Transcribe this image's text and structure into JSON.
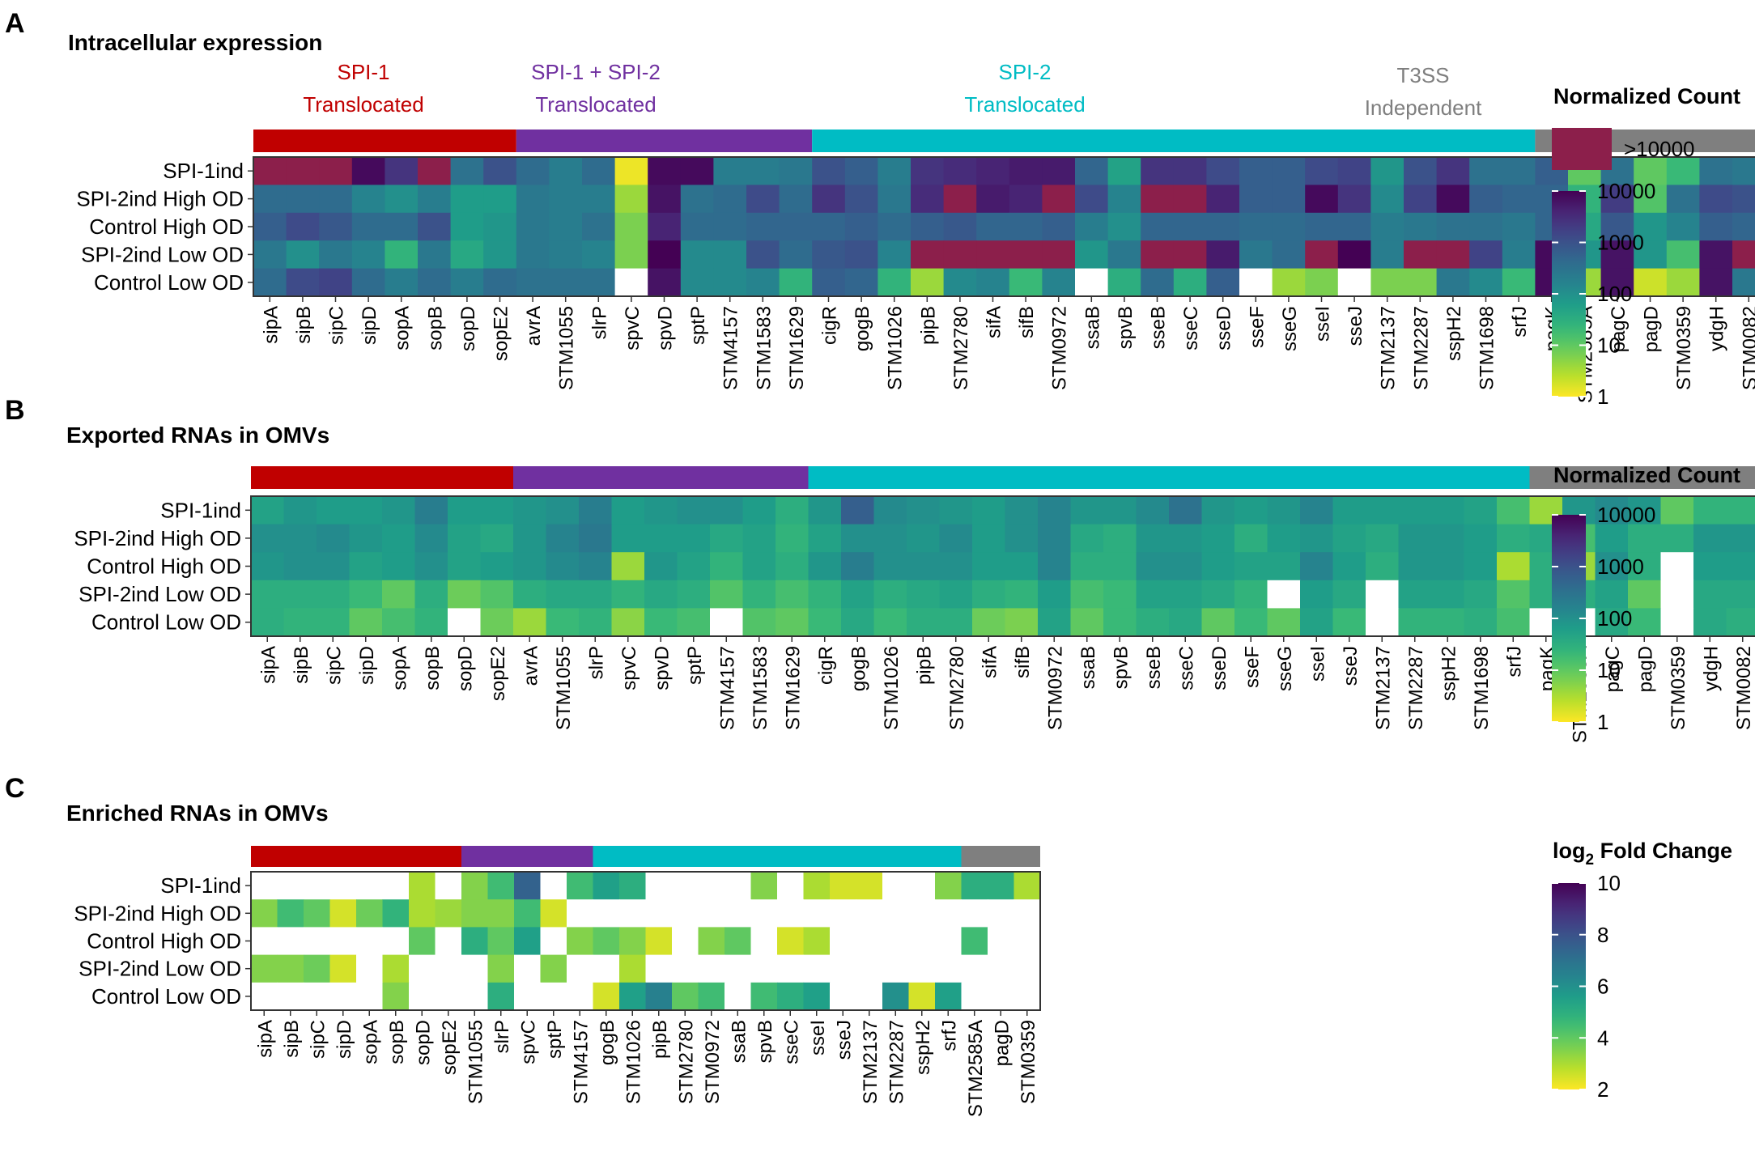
{
  "figure": {
    "legend_titles": {
      "counts": "Normalized Count",
      "fold_prefix": "log",
      "fold_sub": "2",
      "fold_suffix": " Fold Change"
    },
    "saturation_label": ">10000",
    "group_labels": [
      {
        "line1": "SPI-1",
        "line2": "Translocated",
        "color": "#c00000"
      },
      {
        "line1": "SPI-1 + SPI-2",
        "line2": "Translocated",
        "color": "#7030a0"
      },
      {
        "line1": "SPI-2",
        "line2": "Translocated",
        "color": "#00bcc4"
      },
      {
        "line1": "T3SS",
        "line2": "Independent",
        "color": "#7f7f7f"
      }
    ],
    "count_ticks": [
      "10000",
      "1000",
      "100",
      "10",
      "1"
    ],
    "fold_ticks": [
      "10",
      "8",
      "6",
      "4",
      "2"
    ]
  },
  "chart_data": [
    {
      "panel": "A",
      "title": "Intracellular expression",
      "type": "heatmap",
      "scale": "log10 normalized count",
      "range": [
        1,
        10000
      ],
      "saturated_above": 10000,
      "rows": [
        "SPI-1ind",
        "SPI-2ind High OD",
        "Control High OD",
        "SPI-2ind Low OD",
        "Control Low OD"
      ],
      "columns": [
        "sipA",
        "sipB",
        "sipC",
        "sipD",
        "sopA",
        "sopB",
        "sopD",
        "sopE2",
        "avrA",
        "STM1055",
        "slrP",
        "spvC",
        "spvD",
        "sptP",
        "STM4157",
        "STM1583",
        "STM1629",
        "cigR",
        "gogB",
        "STM1026",
        "pipB",
        "STM2780",
        "sifA",
        "sifB",
        "STM0972",
        "ssaB",
        "spvB",
        "sseB",
        "sseC",
        "sseD",
        "sseF",
        "sseG",
        "sseI",
        "sseJ",
        "STM2137",
        "STM2287",
        "sspH2",
        "STM1698",
        "srfJ",
        "pagK",
        "STM2585A",
        "pagC",
        "pagD",
        "STM0359",
        "ydgH",
        "STM0082"
      ],
      "groups": [
        {
          "name": "SPI-1 Translocated",
          "start": 0,
          "end": 7
        },
        {
          "name": "SPI-1 + SPI-2 Translocated",
          "start": 8,
          "end": 16
        },
        {
          "name": "SPI-2 Translocated",
          "start": 17,
          "end": 38
        },
        {
          "name": "T3SS Independent",
          "start": 39,
          "end": 45
        }
      ],
      "values_log10": [
        [
          4.3,
          4.3,
          4.3,
          3.9,
          3.4,
          4.3,
          2.5,
          3.0,
          2.6,
          2.3,
          2.6,
          0.1,
          3.9,
          3.9,
          2.3,
          2.3,
          2.4,
          3.0,
          2.8,
          2.3,
          3.4,
          3.5,
          3.6,
          3.7,
          3.7,
          2.7,
          1.7,
          3.4,
          3.4,
          3.1,
          2.8,
          2.8,
          3.1,
          3.2,
          1.9,
          3.0,
          3.4,
          2.5,
          2.5,
          2.8,
          1.0,
          2.5,
          1.0,
          1.3,
          2.5,
          2.4
        ],
        [
          2.6,
          2.6,
          2.6,
          2.2,
          2.0,
          2.3,
          1.8,
          1.8,
          2.4,
          2.3,
          2.3,
          0.6,
          3.8,
          2.5,
          2.6,
          3.1,
          2.6,
          3.4,
          3.0,
          2.4,
          3.5,
          4.3,
          3.7,
          3.6,
          4.3,
          3.1,
          2.2,
          4.3,
          4.3,
          3.6,
          2.8,
          2.8,
          3.9,
          3.4,
          2.1,
          3.2,
          3.9,
          2.8,
          2.7,
          2.7,
          1.4,
          3.3,
          1.1,
          2.5,
          3.1,
          3.0
        ],
        [
          2.8,
          3.1,
          2.9,
          2.6,
          2.6,
          3.0,
          1.8,
          1.9,
          2.4,
          2.3,
          2.5,
          0.8,
          3.6,
          2.6,
          2.6,
          2.7,
          2.7,
          2.7,
          2.8,
          2.6,
          2.8,
          2.9,
          2.7,
          2.7,
          2.8,
          2.3,
          2.0,
          2.7,
          2.7,
          2.7,
          2.6,
          2.6,
          2.7,
          2.7,
          2.3,
          2.4,
          2.5,
          2.5,
          2.4,
          2.7,
          1.6,
          2.9,
          1.9,
          2.2,
          2.8,
          2.7
        ],
        [
          2.4,
          2.0,
          2.4,
          2.2,
          1.4,
          2.4,
          1.6,
          1.9,
          2.4,
          2.3,
          2.2,
          0.8,
          4.0,
          2.1,
          2.1,
          3.0,
          2.6,
          2.9,
          3.0,
          2.2,
          4.3,
          4.3,
          4.3,
          4.3,
          4.3,
          1.9,
          2.4,
          4.3,
          4.3,
          3.7,
          2.4,
          2.6,
          4.3,
          4.0,
          2.3,
          4.3,
          4.3,
          3.2,
          2.3,
          3.9,
          1.9,
          3.8,
          1.9,
          1.2,
          3.8,
          4.3
        ],
        [
          2.6,
          3.1,
          3.2,
          2.6,
          2.3,
          2.6,
          2.3,
          2.6,
          2.5,
          2.5,
          2.5,
          null,
          3.8,
          2.1,
          2.1,
          2.2,
          1.4,
          2.8,
          2.7,
          1.4,
          0.6,
          2.1,
          2.2,
          1.3,
          2.2,
          null,
          1.5,
          2.6,
          1.5,
          2.8,
          null,
          0.6,
          0.8,
          null,
          0.8,
          0.8,
          2.4,
          2.1,
          1.3,
          3.9,
          0.6,
          3.8,
          0.3,
          0.6,
          3.8,
          2.4
        ]
      ]
    },
    {
      "panel": "B",
      "title": "Exported RNAs in OMVs",
      "type": "heatmap",
      "scale": "log10 normalized count",
      "range": [
        1,
        10000
      ],
      "rows": [
        "SPI-1ind",
        "SPI-2ind High OD",
        "Control High OD",
        "SPI-2ind Low OD",
        "Control Low OD"
      ],
      "columns": [
        "sipA",
        "sipB",
        "sipC",
        "sipD",
        "sopA",
        "sopB",
        "sopD",
        "sopE2",
        "avrA",
        "STM1055",
        "slrP",
        "spvC",
        "spvD",
        "sptP",
        "STM4157",
        "STM1583",
        "STM1629",
        "cigR",
        "gogB",
        "STM1026",
        "pipB",
        "STM2780",
        "sifA",
        "sifB",
        "STM0972",
        "ssaB",
        "spvB",
        "sseB",
        "sseC",
        "sseD",
        "sseF",
        "sseG",
        "sseI",
        "sseJ",
        "STM2137",
        "STM2287",
        "sspH2",
        "STM1698",
        "srfJ",
        "pagK",
        "STM2585A",
        "pagC",
        "pagD",
        "STM0359",
        "ydgH",
        "STM0082"
      ],
      "groups": [
        {
          "name": "SPI-1 Translocated",
          "start": 0,
          "end": 7
        },
        {
          "name": "SPI-1 + SPI-2 Translocated",
          "start": 8,
          "end": 16
        },
        {
          "name": "SPI-2 Translocated",
          "start": 17,
          "end": 38
        },
        {
          "name": "T3SS Independent",
          "start": 39,
          "end": 45
        }
      ],
      "values_log10": [
        [
          1.7,
          1.9,
          1.8,
          1.8,
          1.9,
          2.3,
          1.8,
          1.8,
          1.9,
          2.0,
          2.3,
          1.8,
          1.9,
          2.0,
          2.0,
          1.8,
          1.5,
          1.9,
          2.8,
          2.1,
          2.0,
          1.9,
          1.8,
          2.0,
          2.2,
          1.9,
          1.9,
          2.1,
          2.5,
          1.9,
          1.8,
          1.9,
          2.2,
          1.8,
          1.8,
          1.8,
          1.8,
          1.7,
          1.2,
          0.6,
          1.9,
          2.1,
          1.9,
          1.0,
          1.4,
          1.4
        ],
        [
          2.0,
          2.0,
          2.1,
          1.9,
          1.8,
          2.1,
          1.7,
          1.6,
          1.9,
          2.2,
          2.4,
          1.8,
          1.8,
          1.8,
          1.6,
          1.7,
          1.4,
          1.7,
          2.0,
          2.0,
          1.9,
          2.1,
          1.8,
          2.0,
          2.2,
          1.6,
          1.5,
          1.9,
          1.9,
          1.8,
          1.5,
          1.8,
          1.9,
          1.7,
          1.6,
          1.9,
          1.9,
          1.8,
          1.5,
          1.6,
          1.2,
          1.8,
          1.5,
          1.5,
          1.9,
          1.9
        ],
        [
          1.9,
          2.0,
          2.0,
          1.7,
          1.8,
          2.0,
          1.7,
          1.8,
          1.9,
          2.1,
          2.2,
          0.6,
          1.9,
          1.7,
          1.4,
          1.7,
          1.5,
          1.9,
          2.3,
          2.0,
          2.0,
          2.0,
          1.8,
          1.8,
          2.2,
          1.5,
          1.5,
          2.0,
          2.0,
          1.8,
          1.7,
          1.7,
          2.2,
          1.8,
          1.5,
          1.9,
          1.9,
          1.8,
          0.5,
          1.5,
          0.6,
          2.0,
          1.5,
          null,
          1.8,
          1.8
        ],
        [
          1.5,
          1.5,
          1.5,
          1.3,
          1.0,
          1.5,
          0.9,
          1.1,
          1.5,
          1.6,
          1.6,
          1.4,
          1.6,
          1.5,
          1.1,
          1.4,
          1.2,
          1.4,
          1.7,
          1.5,
          1.6,
          1.7,
          1.5,
          1.4,
          1.8,
          1.2,
          1.3,
          1.7,
          1.7,
          1.6,
          1.4,
          null,
          1.8,
          1.6,
          null,
          1.7,
          1.7,
          1.6,
          1.1,
          1.5,
          1.5,
          1.7,
          1.0,
          null,
          1.6,
          1.6
        ],
        [
          1.5,
          1.4,
          1.4,
          1.0,
          1.2,
          1.4,
          null,
          0.9,
          0.6,
          1.3,
          1.4,
          0.7,
          1.3,
          1.2,
          null,
          1.1,
          1.0,
          1.3,
          1.6,
          1.3,
          1.5,
          1.5,
          0.9,
          0.8,
          1.7,
          1.0,
          1.3,
          1.5,
          1.6,
          1.0,
          1.3,
          1.0,
          1.7,
          1.3,
          null,
          1.4,
          1.4,
          1.5,
          1.2,
          null,
          null,
          1.6,
          1.3,
          null,
          1.6,
          1.5
        ]
      ]
    },
    {
      "panel": "C",
      "title": "Enriched RNAs in OMVs",
      "type": "heatmap",
      "scale": "log2 fold change",
      "range": [
        2,
        10
      ],
      "rows": [
        "SPI-1ind",
        "SPI-2ind High OD",
        "Control High OD",
        "SPI-2ind Low OD",
        "Control Low OD"
      ],
      "columns": [
        "sipA",
        "sipB",
        "sipC",
        "sipD",
        "sopA",
        "sopB",
        "sopD",
        "sopE2",
        "STM1055",
        "slrP",
        "spvC",
        "sptP",
        "STM4157",
        "gogB",
        "STM1026",
        "pipB",
        "STM2780",
        "STM0972",
        "ssaB",
        "spvB",
        "sseC",
        "sseI",
        "sseJ",
        "STM2137",
        "STM2287",
        "sspH2",
        "srfJ",
        "STM2585A",
        "pagD",
        "STM0359"
      ],
      "groups": [
        {
          "name": "SPI-1 Translocated",
          "start": 0,
          "end": 7
        },
        {
          "name": "SPI-1 + SPI-2 Translocated",
          "start": 8,
          "end": 12
        },
        {
          "name": "SPI-2 Translocated",
          "start": 13,
          "end": 26
        },
        {
          "name": "T3SS Independent",
          "start": 27,
          "end": 29
        }
      ],
      "values": [
        [
          null,
          null,
          null,
          null,
          null,
          null,
          3.0,
          null,
          3.5,
          4.5,
          7.5,
          null,
          4.5,
          5.5,
          5.0,
          null,
          null,
          null,
          null,
          3.5,
          null,
          3.0,
          2.5,
          2.5,
          null,
          null,
          3.5,
          5.0,
          5.0,
          3.0
        ],
        [
          3.5,
          4.5,
          4.0,
          2.5,
          3.8,
          4.8,
          3.0,
          3.2,
          3.5,
          3.5,
          4.5,
          2.5,
          null,
          null,
          null,
          null,
          null,
          null,
          null,
          null,
          null,
          null,
          null,
          null,
          null,
          null,
          null,
          null,
          null,
          null
        ],
        [
          null,
          null,
          null,
          null,
          null,
          null,
          4.0,
          null,
          5.0,
          4.0,
          5.5,
          null,
          3.5,
          4.0,
          3.5,
          2.5,
          null,
          3.5,
          4.0,
          null,
          2.5,
          3.0,
          null,
          null,
          null,
          null,
          null,
          4.5,
          null,
          null
        ],
        [
          3.5,
          3.5,
          3.8,
          2.5,
          null,
          3.0,
          null,
          null,
          null,
          3.5,
          null,
          3.5,
          null,
          null,
          3.0,
          null,
          null,
          null,
          null,
          null,
          null,
          null,
          null,
          null,
          null,
          null,
          null,
          null,
          null,
          null
        ],
        [
          null,
          null,
          null,
          null,
          null,
          3.5,
          null,
          null,
          null,
          5.0,
          null,
          null,
          null,
          2.5,
          5.5,
          6.5,
          4.0,
          4.5,
          null,
          4.5,
          5.0,
          5.5,
          null,
          null,
          6.0,
          2.5,
          5.5,
          null,
          null,
          null
        ]
      ]
    }
  ]
}
